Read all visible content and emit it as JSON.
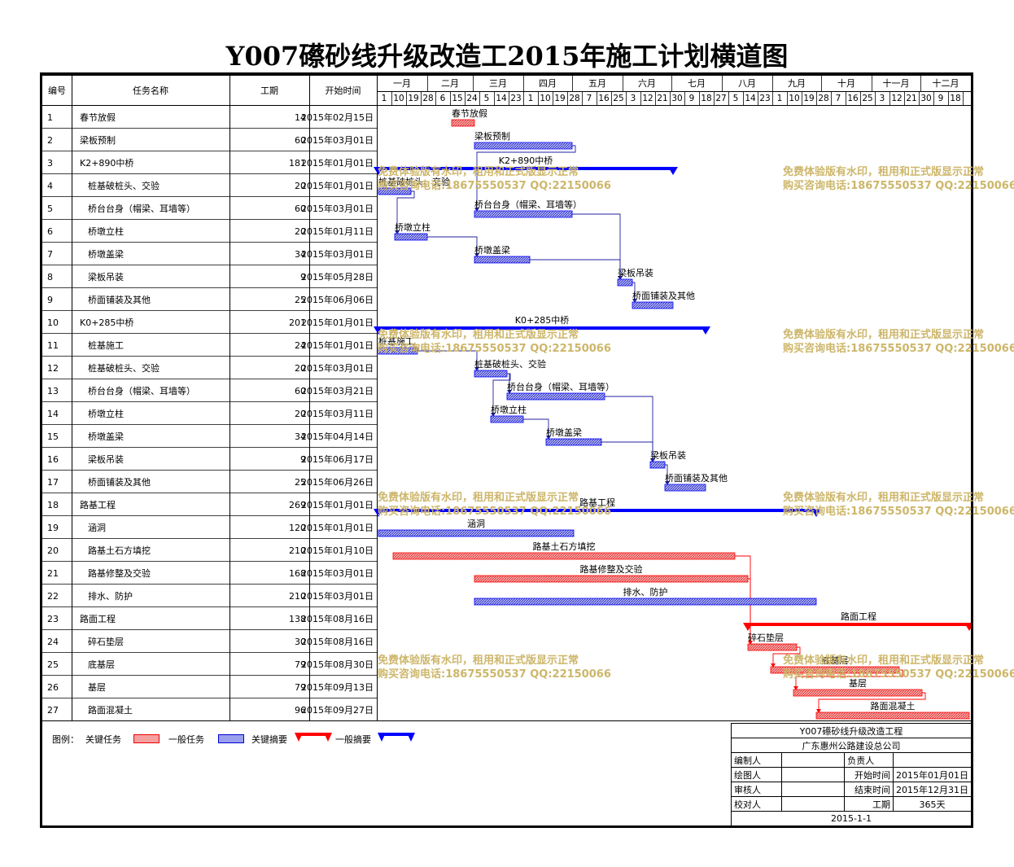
{
  "title": "Y007礤砂线升级改造工2015年施工计划横道图",
  "header": {
    "col_no": "编号",
    "col_name": "任务名称",
    "col_dur": "工期",
    "col_start": "开始时间"
  },
  "months": [
    {
      "label": "一月",
      "days": [
        "1",
        "10",
        "19",
        "28"
      ]
    },
    {
      "label": "二月",
      "days": [
        "6",
        "15",
        "24"
      ]
    },
    {
      "label": "三月",
      "days": [
        "5",
        "14",
        "23"
      ]
    },
    {
      "label": "四月",
      "days": [
        "1",
        "10",
        "19",
        "28"
      ]
    },
    {
      "label": "五月",
      "days": [
        "7",
        "16",
        "25"
      ]
    },
    {
      "label": "六月",
      "days": [
        "3",
        "12",
        "21",
        "30"
      ]
    },
    {
      "label": "七月",
      "days": [
        "9",
        "18",
        "27"
      ]
    },
    {
      "label": "八月",
      "days": [
        "5",
        "14",
        "23"
      ]
    },
    {
      "label": "九月",
      "days": [
        "1",
        "10",
        "19",
        "28"
      ]
    },
    {
      "label": "十月",
      "days": [
        "7",
        "16",
        "25"
      ]
    },
    {
      "label": "十一月",
      "days": [
        "3",
        "12",
        "21",
        "30"
      ]
    },
    {
      "label": "十二月",
      "days": [
        "9",
        "18"
      ]
    }
  ],
  "chart_data": {
    "type": "gantt",
    "title": "Y007礤砂线升级改造工2015年施工计划横道图",
    "x_range": [
      "2015-01-01",
      "2015-12-31"
    ],
    "tasks": [
      {
        "no": "1",
        "name": "春节放假",
        "indent": 0,
        "dur": "14",
        "start": "2015年02月15日",
        "s": "2015-02-15",
        "d": 14,
        "kind": "critical-task",
        "bar_label": "春节放假"
      },
      {
        "no": "2",
        "name": "梁板预制",
        "indent": 0,
        "dur": "60",
        "start": "2015年03月01日",
        "s": "2015-03-01",
        "d": 60,
        "kind": "task",
        "bar_label": "梁板预制"
      },
      {
        "no": "3",
        "name": "K2+890中桥",
        "indent": 0,
        "dur": "181",
        "start": "2015年01月01日",
        "s": "2015-01-01",
        "d": 181,
        "kind": "summary",
        "bar_label": "K2+890中桥"
      },
      {
        "no": "4",
        "name": "桩基破桩头、交验",
        "indent": 1,
        "dur": "20",
        "start": "2015年01月01日",
        "s": "2015-01-01",
        "d": 20,
        "kind": "task",
        "bar_label": "桩基破桩头、交验"
      },
      {
        "no": "5",
        "name": "桥台台身（帽梁、耳墙等）",
        "indent": 1,
        "dur": "60",
        "start": "2015年03月01日",
        "s": "2015-03-01",
        "d": 60,
        "kind": "task",
        "bar_label": "桥台台身（帽梁、耳墙等）"
      },
      {
        "no": "6",
        "name": "桥墩立柱",
        "indent": 1,
        "dur": "20",
        "start": "2015年01月11日",
        "s": "2015-01-11",
        "d": 20,
        "kind": "task",
        "bar_label": "桥墩立柱"
      },
      {
        "no": "7",
        "name": "桥墩盖梁",
        "indent": 1,
        "dur": "34",
        "start": "2015年03月01日",
        "s": "2015-03-01",
        "d": 34,
        "kind": "task",
        "bar_label": "桥墩盖梁"
      },
      {
        "no": "8",
        "name": "梁板吊装",
        "indent": 1,
        "dur": "9",
        "start": "2015年05月28日",
        "s": "2015-05-28",
        "d": 9,
        "kind": "task",
        "bar_label": "梁板吊装"
      },
      {
        "no": "9",
        "name": "桥面铺装及其他",
        "indent": 1,
        "dur": "25",
        "start": "2015年06月06日",
        "s": "2015-06-06",
        "d": 25,
        "kind": "task",
        "bar_label": "桥面铺装及其他"
      },
      {
        "no": "10",
        "name": "K0+285中桥",
        "indent": 0,
        "dur": "201",
        "start": "2015年01月01日",
        "s": "2015-01-01",
        "d": 201,
        "kind": "summary",
        "bar_label": "K0+285中桥"
      },
      {
        "no": "11",
        "name": "桩基施工",
        "indent": 1,
        "dur": "24",
        "start": "2015年01月01日",
        "s": "2015-01-01",
        "d": 24,
        "kind": "task",
        "bar_label": "桩基施工"
      },
      {
        "no": "12",
        "name": "桩基破桩头、交验",
        "indent": 1,
        "dur": "20",
        "start": "2015年03月01日",
        "s": "2015-03-01",
        "d": 20,
        "kind": "task",
        "bar_label": "桩基破桩头、交验"
      },
      {
        "no": "13",
        "name": "桥台台身（帽梁、耳墙等）",
        "indent": 1,
        "dur": "60",
        "start": "2015年03月21日",
        "s": "2015-03-21",
        "d": 60,
        "kind": "task",
        "bar_label": "桥台台身（帽梁、耳墙等）"
      },
      {
        "no": "14",
        "name": "桥墩立柱",
        "indent": 1,
        "dur": "20",
        "start": "2015年03月11日",
        "s": "2015-03-11",
        "d": 20,
        "kind": "task",
        "bar_label": "桥墩立柱"
      },
      {
        "no": "15",
        "name": "桥墩盖梁",
        "indent": 1,
        "dur": "34",
        "start": "2015年04月14日",
        "s": "2015-04-14",
        "d": 34,
        "kind": "task",
        "bar_label": "桥墩盖梁"
      },
      {
        "no": "16",
        "name": "梁板吊装",
        "indent": 1,
        "dur": "9",
        "start": "2015年06月17日",
        "s": "2015-06-17",
        "d": 9,
        "kind": "task",
        "bar_label": "梁板吊装"
      },
      {
        "no": "17",
        "name": "桥面铺装及其他",
        "indent": 1,
        "dur": "25",
        "start": "2015年06月26日",
        "s": "2015-06-26",
        "d": 25,
        "kind": "task",
        "bar_label": "桥面铺装及其他"
      },
      {
        "no": "18",
        "name": "路基工程",
        "indent": 0,
        "dur": "269",
        "start": "2015年01月01日",
        "s": "2015-01-01",
        "d": 269,
        "kind": "summary",
        "bar_label": "路基工程"
      },
      {
        "no": "19",
        "name": "涵洞",
        "indent": 1,
        "dur": "120",
        "start": "2015年01月01日",
        "s": "2015-01-01",
        "d": 120,
        "kind": "task",
        "bar_label": "涵洞"
      },
      {
        "no": "20",
        "name": "路基土石方填挖",
        "indent": 1,
        "dur": "210",
        "start": "2015年01月10日",
        "s": "2015-01-10",
        "d": 210,
        "kind": "critical-task",
        "bar_label": "路基土石方填挖"
      },
      {
        "no": "21",
        "name": "路基修整及交验",
        "indent": 1,
        "dur": "168",
        "start": "2015年03月01日",
        "s": "2015-03-01",
        "d": 168,
        "kind": "critical-task",
        "bar_label": "路基修整及交验"
      },
      {
        "no": "22",
        "name": "排水、防护",
        "indent": 1,
        "dur": "210",
        "start": "2015年03月01日",
        "s": "2015-03-01",
        "d": 210,
        "kind": "task",
        "bar_label": "排水、防护"
      },
      {
        "no": "23",
        "name": "路面工程",
        "indent": 0,
        "dur": "138",
        "start": "2015年08月16日",
        "s": "2015-08-16",
        "d": 138,
        "kind": "critical-summary",
        "bar_label": "路面工程"
      },
      {
        "no": "24",
        "name": "碎石垫层",
        "indent": 1,
        "dur": "30",
        "start": "2015年08月16日",
        "s": "2015-08-16",
        "d": 30,
        "kind": "critical-task",
        "bar_label": "碎石垫层"
      },
      {
        "no": "25",
        "name": "底基层",
        "indent": 1,
        "dur": "79",
        "start": "2015年08月30日",
        "s": "2015-08-30",
        "d": 79,
        "kind": "critical-task",
        "bar_label": "底基层"
      },
      {
        "no": "26",
        "name": "基层",
        "indent": 1,
        "dur": "79",
        "start": "2015年09月13日",
        "s": "2015-09-13",
        "d": 79,
        "kind": "critical-task",
        "bar_label": "基层"
      },
      {
        "no": "27",
        "name": "路面混凝土",
        "indent": 1,
        "dur": "96",
        "start": "2015年09月27日",
        "s": "2015-09-27",
        "d": 96,
        "kind": "critical-task",
        "bar_label": "路面混凝土"
      }
    ],
    "links": [
      [
        2,
        5
      ],
      [
        4,
        6
      ],
      [
        6,
        7
      ],
      [
        5,
        8
      ],
      [
        7,
        8
      ],
      [
        8,
        9
      ],
      [
        11,
        12
      ],
      [
        12,
        13
      ],
      [
        12,
        14
      ],
      [
        14,
        15
      ],
      [
        13,
        16
      ],
      [
        15,
        16
      ],
      [
        16,
        17
      ],
      [
        20,
        24
      ],
      [
        21,
        24
      ],
      [
        24,
        25
      ],
      [
        25,
        26
      ],
      [
        26,
        27
      ]
    ]
  },
  "legend": {
    "label": "图例：",
    "critical_task": "关键任务",
    "task": "一般任务",
    "critical_summary": "关键摘要",
    "summary": "一般摘要"
  },
  "info": {
    "project": "Y007礤砂线升级改造工程",
    "company": "广东惠州公路建设总公司",
    "compiler": "编制人",
    "owner": "负责人",
    "drawer": "绘图人",
    "start_label": "开始时间",
    "start_value": "2015年01月01日",
    "reviewer": "审核人",
    "end_label": "结束时间",
    "end_value": "2015年12月31日",
    "checker": "校对人",
    "dur_label": "工期",
    "dur_value": "365天",
    "date": "2015-1-1"
  },
  "watermark": {
    "line1": "免费体验版有水印，租用和正式版显示正常",
    "line2": "购买咨询电话:18675550537 QQ:22150066"
  },
  "colors": {
    "critical": "#ff0000",
    "critical_fill": "#f4a0a0",
    "normal": "#0000ff",
    "normal_fill": "#9aa0ee",
    "link": "#2020a0",
    "watermark": "#cdb66a"
  }
}
